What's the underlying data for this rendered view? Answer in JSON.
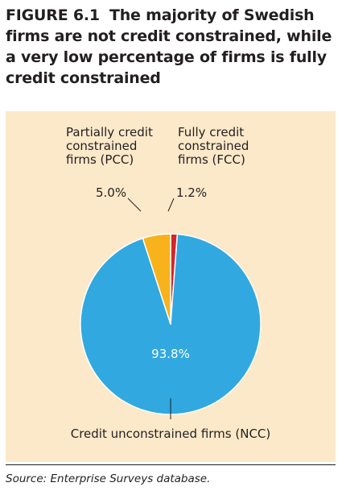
{
  "figure": {
    "number": "FIGURE 6.1",
    "title": "The majority of Swedish firms are not credit constrained, while a very low percentage of firms is fully credit constrained"
  },
  "source": "Source: Enterprise Surveys database.",
  "colors": {
    "panel_background": "#fbe9c9",
    "NCC": "#31a8df",
    "PCC": "#f7b21c",
    "FCC": "#d4262d"
  },
  "chart_data": {
    "type": "pie",
    "slices": [
      {
        "key": "FCC",
        "label_lines": [
          "Fully credit",
          "constrained",
          "firms (FCC)"
        ],
        "value": 1.2,
        "value_label": "1.2%",
        "color": "#d4262d"
      },
      {
        "key": "NCC",
        "label_lines": [
          "Credit unconstrained firms (NCC)"
        ],
        "value": 93.8,
        "value_label": "93.8%",
        "color": "#31a8df"
      },
      {
        "key": "PCC",
        "label_lines": [
          "Partially credit",
          "constrained",
          "firms (PCC)"
        ],
        "value": 5.0,
        "value_label": "5.0%",
        "color": "#f7b21c"
      }
    ],
    "start": "top",
    "direction": "clockwise"
  }
}
